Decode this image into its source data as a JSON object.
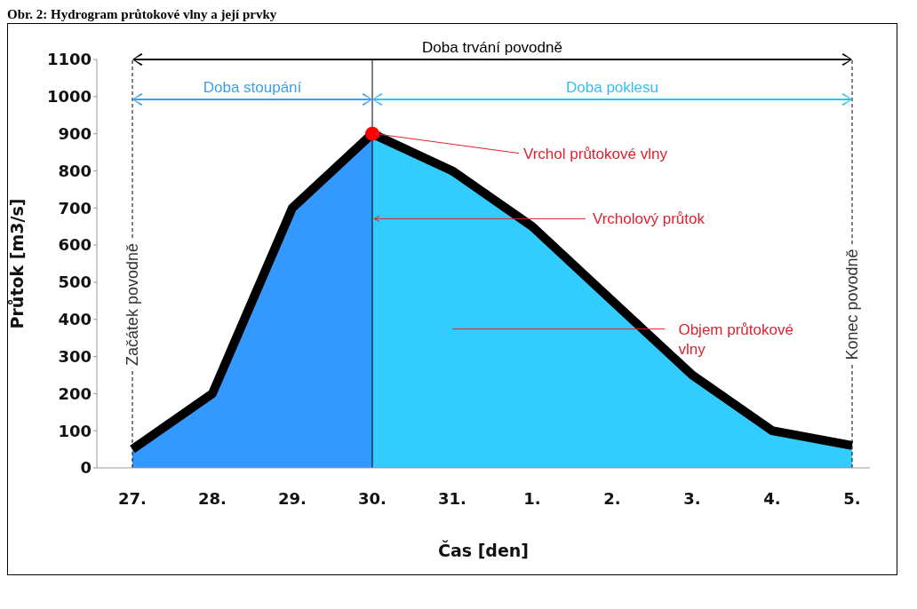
{
  "chart_data": {
    "type": "area",
    "title": "Obr. 2: Hydrogram průtokové vlny a její prvky",
    "xlabel": "Čas [den]",
    "ylabel": "Průtok [m3/s]",
    "categories": [
      "27.",
      "28.",
      "29.",
      "30.",
      "31.",
      "1.",
      "2.",
      "3.",
      "4.",
      "5."
    ],
    "series": [
      {
        "color": "#3399ff",
        "values": [
          50,
          200,
          700,
          900,
          null,
          null,
          null,
          null,
          null,
          null
        ]
      },
      {
        "color": "#33ccff",
        "values": [
          null,
          null,
          null,
          900,
          800,
          650,
          450,
          250,
          100,
          60
        ]
      },
      {
        "type": "line",
        "color": "#000000",
        "values": [
          50,
          200,
          700,
          900,
          800,
          650,
          450,
          250,
          100,
          60
        ]
      },
      {
        "type": "scatter",
        "color": "#ff0000",
        "values": [
          null,
          null,
          null,
          900,
          null,
          null,
          null,
          null,
          null,
          null
        ]
      }
    ],
    "ylim": [
      0,
      1100
    ],
    "yticks": [
      0,
      100,
      200,
      300,
      400,
      500,
      600,
      700,
      800,
      900,
      1000,
      1100
    ],
    "ref_lines": [
      {
        "axis": "x",
        "value": "27.",
        "label": "Začátek povodně",
        "line_style": "dashed",
        "color": "#000000"
      },
      {
        "axis": "x",
        "value": "5.",
        "label": "Konec povodně",
        "line_style": "dashed",
        "color": "#000000"
      },
      {
        "axis": "x",
        "value": "30.",
        "label": "Vrcholový průtok",
        "line_style": "solid",
        "color": "#000000"
      }
    ],
    "annotations": [
      "Doba trvání povodně",
      "Doba stoupání",
      "Doba poklesu",
      {
        "text": "Vrchol průtokové vlny",
        "x": "30.",
        "y": 900
      },
      "Objem průtokové vlny"
    ]
  }
}
